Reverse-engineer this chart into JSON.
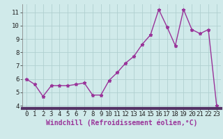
{
  "x": [
    0,
    1,
    2,
    3,
    4,
    5,
    6,
    7,
    8,
    9,
    10,
    11,
    12,
    13,
    14,
    15,
    16,
    17,
    18,
    19,
    20,
    21,
    22,
    23
  ],
  "y": [
    6.0,
    5.6,
    4.7,
    5.5,
    5.5,
    5.5,
    5.6,
    5.7,
    4.8,
    4.8,
    5.9,
    6.5,
    7.2,
    7.7,
    8.6,
    9.3,
    11.2,
    9.9,
    8.5,
    11.2,
    9.7,
    9.4,
    9.7,
    4.0
  ],
  "line_color": "#993399",
  "marker": "*",
  "marker_size": 3.5,
  "background_color": "#d0eaea",
  "grid_color": "#b0d0d0",
  "xlabel": "Windchill (Refroidissement éolien,°C)",
  "xlabel_fontsize": 7,
  "xlim": [
    -0.5,
    23.5
  ],
  "ylim": [
    3.8,
    11.6
  ],
  "yticks": [
    4,
    5,
    6,
    7,
    8,
    9,
    10,
    11
  ],
  "xticks": [
    0,
    1,
    2,
    3,
    4,
    5,
    6,
    7,
    8,
    9,
    10,
    11,
    12,
    13,
    14,
    15,
    16,
    17,
    18,
    19,
    20,
    21,
    22,
    23
  ],
  "tick_fontsize": 6.5,
  "tick_color": "#222222",
  "spine_color": "#888888",
  "line_width": 1.0
}
